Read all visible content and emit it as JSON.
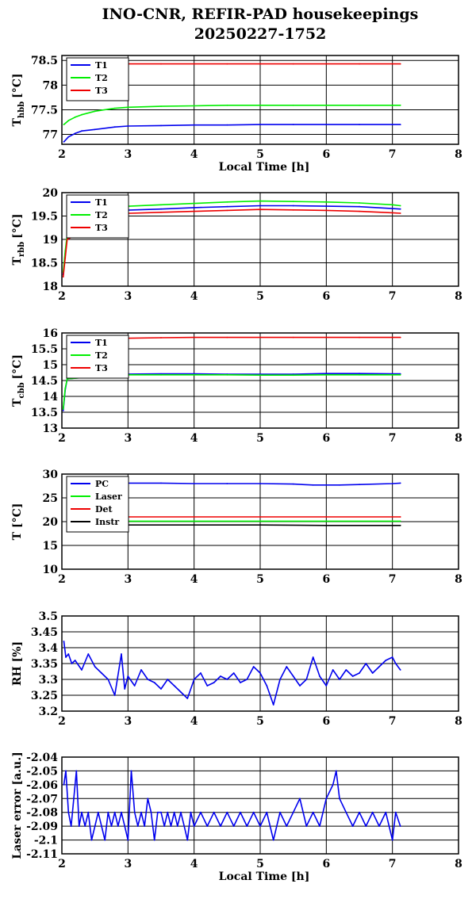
{
  "title": {
    "line1": "INO-CNR, REFIR-PAD housekeepings",
    "line2": "20250227-1752"
  },
  "colors": {
    "blue": "#0000ee",
    "green": "#00ee00",
    "red": "#ee0000",
    "black": "#000000"
  },
  "chart_data": [
    {
      "type": "line",
      "ylabel": {
        "main": "T",
        "sub": "hbb",
        "unit": "[°C]"
      },
      "xlabel": "Local Time [h]",
      "xlim": [
        2,
        8
      ],
      "ylim": [
        76.8,
        78.6
      ],
      "xticks": [
        "2",
        "3",
        "4",
        "5",
        "6",
        "7",
        "8"
      ],
      "yticks": [
        {
          "v": 77,
          "l": "77"
        },
        {
          "v": 77.5,
          "l": "77.5"
        },
        {
          "v": 78,
          "l": "78"
        },
        {
          "v": 78.5,
          "l": "78.5"
        }
      ],
      "grid": true,
      "legend": "top-left",
      "series": [
        {
          "name": "T1",
          "color": "#0000ee",
          "x": [
            2.03,
            2.1,
            2.2,
            2.3,
            2.5,
            2.8,
            3.0,
            3.5,
            4.0,
            4.5,
            5.0,
            5.5,
            6.0,
            6.5,
            7.0,
            7.12
          ],
          "y": [
            76.85,
            76.95,
            77.02,
            77.07,
            77.1,
            77.15,
            77.17,
            77.18,
            77.19,
            77.19,
            77.2,
            77.2,
            77.2,
            77.2,
            77.2,
            77.2
          ]
        },
        {
          "name": "T2",
          "color": "#00ee00",
          "x": [
            2.03,
            2.1,
            2.2,
            2.3,
            2.5,
            2.8,
            3.0,
            3.5,
            4.0,
            4.5,
            5.0,
            5.5,
            6.0,
            6.5,
            7.0,
            7.12
          ],
          "y": [
            77.2,
            77.28,
            77.35,
            77.4,
            77.47,
            77.53,
            77.55,
            77.57,
            77.58,
            77.59,
            77.59,
            77.59,
            77.59,
            77.59,
            77.59,
            77.59
          ]
        },
        {
          "name": "T3",
          "color": "#ee0000",
          "x": [
            2.85,
            3.5,
            4.0,
            4.5,
            5.0,
            5.5,
            6.0,
            6.5,
            7.0,
            7.12
          ],
          "y": [
            78.43,
            78.43,
            78.43,
            78.43,
            78.43,
            78.43,
            78.43,
            78.43,
            78.43,
            78.43
          ]
        }
      ]
    },
    {
      "type": "line",
      "ylabel": {
        "main": "T",
        "sub": "rbb",
        "unit": "[°C]"
      },
      "xlabel": "",
      "xlim": [
        2,
        8
      ],
      "ylim": [
        18,
        20
      ],
      "xticks": [
        "2",
        "3",
        "4",
        "5",
        "6",
        "7",
        "8"
      ],
      "yticks": [
        {
          "v": 18,
          "l": "18"
        },
        {
          "v": 18.5,
          "l": "18.5"
        },
        {
          "v": 19,
          "l": "19"
        },
        {
          "v": 19.5,
          "l": "19.5"
        },
        {
          "v": 20,
          "l": "20"
        }
      ],
      "grid": true,
      "legend": "top-left",
      "series": [
        {
          "name": "T1",
          "color": "#0000ee",
          "x": [
            2.02,
            2.05,
            2.08,
            2.85,
            3.5,
            4.0,
            4.5,
            5.0,
            5.5,
            6.0,
            6.5,
            7.0,
            7.12
          ],
          "y": [
            18.25,
            18.7,
            19.05,
            19.62,
            19.65,
            19.68,
            19.7,
            19.72,
            19.72,
            19.71,
            19.7,
            19.66,
            19.65
          ]
        },
        {
          "name": "T2",
          "color": "#00ee00",
          "x": [
            2.02,
            2.05,
            2.08,
            2.85,
            3.5,
            4.0,
            4.5,
            5.0,
            5.5,
            6.0,
            6.5,
            7.0,
            7.12
          ],
          "y": [
            18.3,
            18.75,
            19.1,
            19.7,
            19.74,
            19.77,
            19.8,
            19.82,
            19.81,
            19.8,
            19.78,
            19.74,
            19.72
          ]
        },
        {
          "name": "T3",
          "color": "#ee0000",
          "x": [
            2.02,
            2.05,
            2.08,
            2.85,
            3.5,
            4.0,
            4.5,
            5.0,
            5.5,
            6.0,
            6.5,
            7.0,
            7.12
          ],
          "y": [
            18.2,
            18.6,
            19.0,
            19.55,
            19.58,
            19.6,
            19.62,
            19.64,
            19.63,
            19.62,
            19.6,
            19.57,
            19.56
          ]
        }
      ]
    },
    {
      "type": "line",
      "ylabel": {
        "main": "T",
        "sub": "cbb",
        "unit": "[°C]"
      },
      "xlabel": "",
      "xlim": [
        2,
        8
      ],
      "ylim": [
        13,
        16
      ],
      "xticks": [
        "2",
        "3",
        "4",
        "5",
        "6",
        "7",
        "8"
      ],
      "yticks": [
        {
          "v": 13,
          "l": "13"
        },
        {
          "v": 13.5,
          "l": "13.5"
        },
        {
          "v": 14,
          "l": "14"
        },
        {
          "v": 14.5,
          "l": "14.5"
        },
        {
          "v": 15,
          "l": "15"
        },
        {
          "v": 15.5,
          "l": "15.5"
        },
        {
          "v": 16,
          "l": "16"
        }
      ],
      "grid": true,
      "legend": "top-left",
      "series": [
        {
          "name": "T1",
          "color": "#0000ee",
          "x": [
            2.02,
            2.05,
            2.08,
            2.85,
            3.5,
            4.0,
            4.5,
            5.0,
            5.5,
            6.0,
            6.5,
            7.0,
            7.12
          ],
          "y": [
            13.55,
            14.2,
            14.55,
            14.7,
            14.71,
            14.71,
            14.7,
            14.7,
            14.7,
            14.72,
            14.72,
            14.71,
            14.71
          ]
        },
        {
          "name": "T2",
          "color": "#00ee00",
          "x": [
            2.02,
            2.05,
            2.08,
            2.85,
            3.5,
            4.0,
            4.5,
            5.0,
            5.5,
            6.0,
            6.5,
            7.0,
            7.12
          ],
          "y": [
            13.6,
            14.25,
            14.55,
            14.68,
            14.68,
            14.68,
            14.68,
            14.67,
            14.67,
            14.68,
            14.68,
            14.68,
            14.68
          ]
        },
        {
          "name": "T3",
          "color": "#ee0000",
          "x": [
            2.85,
            3.5,
            4.0,
            4.5,
            5.0,
            5.5,
            6.0,
            6.5,
            7.0,
            7.12
          ],
          "y": [
            15.83,
            15.85,
            15.86,
            15.86,
            15.86,
            15.86,
            15.86,
            15.86,
            15.86,
            15.86
          ]
        }
      ]
    },
    {
      "type": "line",
      "ylabel": {
        "main": "T [°C]",
        "sub": "",
        "unit": ""
      },
      "xlabel": "",
      "xlim": [
        2,
        8
      ],
      "ylim": [
        10,
        30
      ],
      "xticks": [
        "2",
        "3",
        "4",
        "5",
        "6",
        "7",
        "8"
      ],
      "yticks": [
        {
          "v": 10,
          "l": "10"
        },
        {
          "v": 15,
          "l": "15"
        },
        {
          "v": 20,
          "l": "20"
        },
        {
          "v": 25,
          "l": "25"
        },
        {
          "v": 30,
          "l": "30"
        }
      ],
      "grid": true,
      "legend": "top-left",
      "series": [
        {
          "name": "PC",
          "color": "#0000ee",
          "x": [
            2.85,
            3.5,
            4.0,
            4.5,
            5.0,
            5.5,
            5.8,
            6.2,
            6.5,
            7.0,
            7.12
          ],
          "y": [
            28.1,
            28.1,
            28.0,
            28.0,
            28.0,
            27.9,
            27.7,
            27.7,
            27.8,
            28.0,
            28.1
          ]
        },
        {
          "name": "Laser",
          "color": "#00ee00",
          "x": [
            2.85,
            4.0,
            5.0,
            6.0,
            7.0,
            7.12
          ],
          "y": [
            20.1,
            20.1,
            20.1,
            20.1,
            20.1,
            20.1
          ]
        },
        {
          "name": "Det",
          "color": "#ee0000",
          "x": [
            2.85,
            4.0,
            5.0,
            6.0,
            7.0,
            7.12
          ],
          "y": [
            21.0,
            21.0,
            21.0,
            21.0,
            21.0,
            21.0
          ]
        },
        {
          "name": "Instr",
          "color": "#000000",
          "x": [
            2.85,
            4.0,
            5.0,
            6.0,
            7.0,
            7.12
          ],
          "y": [
            19.3,
            19.3,
            19.3,
            19.2,
            19.2,
            19.2
          ]
        }
      ]
    },
    {
      "type": "line",
      "ylabel": {
        "main": "RH [%]",
        "sub": "",
        "unit": ""
      },
      "xlabel": "",
      "xlim": [
        2,
        8
      ],
      "ylim": [
        3.2,
        3.5
      ],
      "xticks": [
        "2",
        "3",
        "4",
        "5",
        "6",
        "7",
        "8"
      ],
      "yticks": [
        {
          "v": 3.2,
          "l": "3.2"
        },
        {
          "v": 3.25,
          "l": "3.25"
        },
        {
          "v": 3.3,
          "l": "3.3"
        },
        {
          "v": 3.35,
          "l": "3.35"
        },
        {
          "v": 3.4,
          "l": "3.4"
        },
        {
          "v": 3.45,
          "l": "3.45"
        },
        {
          "v": 3.5,
          "l": "3.5"
        }
      ],
      "grid": true,
      "legend": "none",
      "series": [
        {
          "name": "",
          "color": "#0000ee",
          "x": [
            2.03,
            2.06,
            2.1,
            2.15,
            2.2,
            2.3,
            2.4,
            2.5,
            2.6,
            2.7,
            2.8,
            2.9,
            2.95,
            3.0,
            3.1,
            3.2,
            3.3,
            3.4,
            3.5,
            3.6,
            3.7,
            3.8,
            3.9,
            4.0,
            4.1,
            4.2,
            4.3,
            4.4,
            4.5,
            4.6,
            4.7,
            4.8,
            4.9,
            5.0,
            5.1,
            5.2,
            5.3,
            5.4,
            5.5,
            5.6,
            5.7,
            5.8,
            5.9,
            6.0,
            6.1,
            6.2,
            6.3,
            6.4,
            6.5,
            6.6,
            6.7,
            6.8,
            6.9,
            7.0,
            7.05,
            7.12
          ],
          "y": [
            3.42,
            3.37,
            3.38,
            3.35,
            3.36,
            3.33,
            3.38,
            3.34,
            3.32,
            3.3,
            3.25,
            3.38,
            3.27,
            3.31,
            3.28,
            3.33,
            3.3,
            3.29,
            3.27,
            3.3,
            3.28,
            3.26,
            3.24,
            3.3,
            3.32,
            3.28,
            3.29,
            3.31,
            3.3,
            3.32,
            3.29,
            3.3,
            3.34,
            3.32,
            3.28,
            3.22,
            3.3,
            3.34,
            3.31,
            3.28,
            3.3,
            3.37,
            3.31,
            3.28,
            3.33,
            3.3,
            3.33,
            3.31,
            3.32,
            3.35,
            3.32,
            3.34,
            3.36,
            3.37,
            3.35,
            3.33
          ]
        }
      ]
    },
    {
      "type": "line",
      "ylabel": {
        "main": "Laser error [a.u.]",
        "sub": "",
        "unit": ""
      },
      "xlabel": "Local Time [h]",
      "xlim": [
        2,
        8
      ],
      "ylim": [
        -2.11,
        -2.04
      ],
      "xticks": [
        "2",
        "3",
        "4",
        "5",
        "6",
        "7",
        "8"
      ],
      "yticks": [
        {
          "v": -2.11,
          "l": "-2.11"
        },
        {
          "v": -2.1,
          "l": "-2.1"
        },
        {
          "v": -2.09,
          "l": "-2.09"
        },
        {
          "v": -2.08,
          "l": "-2.08"
        },
        {
          "v": -2.07,
          "l": "-2.07"
        },
        {
          "v": -2.06,
          "l": "-2.06"
        },
        {
          "v": -2.05,
          "l": "-2.05"
        },
        {
          "v": -2.04,
          "l": "-2.04"
        }
      ],
      "grid": true,
      "legend": "none",
      "series": [
        {
          "name": "",
          "color": "#0000ee",
          "x": [
            2.03,
            2.06,
            2.1,
            2.14,
            2.18,
            2.22,
            2.26,
            2.3,
            2.35,
            2.4,
            2.45,
            2.5,
            2.55,
            2.6,
            2.65,
            2.7,
            2.75,
            2.8,
            2.85,
            2.9,
            2.95,
            3.0,
            3.05,
            3.1,
            3.15,
            3.2,
            3.25,
            3.3,
            3.35,
            3.4,
            3.45,
            3.5,
            3.55,
            3.6,
            3.65,
            3.7,
            3.75,
            3.8,
            3.85,
            3.9,
            3.95,
            4.0,
            4.1,
            4.2,
            4.3,
            4.4,
            4.5,
            4.6,
            4.7,
            4.8,
            4.9,
            5.0,
            5.1,
            5.2,
            5.3,
            5.4,
            5.5,
            5.6,
            5.7,
            5.8,
            5.9,
            6.0,
            6.1,
            6.15,
            6.2,
            6.3,
            6.4,
            6.5,
            6.6,
            6.7,
            6.8,
            6.9,
            7.0,
            7.05,
            7.12
          ],
          "y": [
            -2.06,
            -2.05,
            -2.08,
            -2.09,
            -2.07,
            -2.05,
            -2.09,
            -2.08,
            -2.09,
            -2.08,
            -2.1,
            -2.09,
            -2.08,
            -2.09,
            -2.1,
            -2.08,
            -2.09,
            -2.08,
            -2.09,
            -2.08,
            -2.09,
            -2.1,
            -2.05,
            -2.08,
            -2.09,
            -2.08,
            -2.09,
            -2.07,
            -2.08,
            -2.1,
            -2.08,
            -2.08,
            -2.09,
            -2.08,
            -2.09,
            -2.08,
            -2.09,
            -2.08,
            -2.09,
            -2.1,
            -2.08,
            -2.09,
            -2.08,
            -2.09,
            -2.08,
            -2.09,
            -2.08,
            -2.09,
            -2.08,
            -2.09,
            -2.08,
            -2.09,
            -2.08,
            -2.1,
            -2.08,
            -2.09,
            -2.08,
            -2.07,
            -2.09,
            -2.08,
            -2.09,
            -2.07,
            -2.06,
            -2.05,
            -2.07,
            -2.08,
            -2.09,
            -2.08,
            -2.09,
            -2.08,
            -2.09,
            -2.08,
            -2.1,
            -2.08,
            -2.09
          ]
        }
      ]
    }
  ]
}
